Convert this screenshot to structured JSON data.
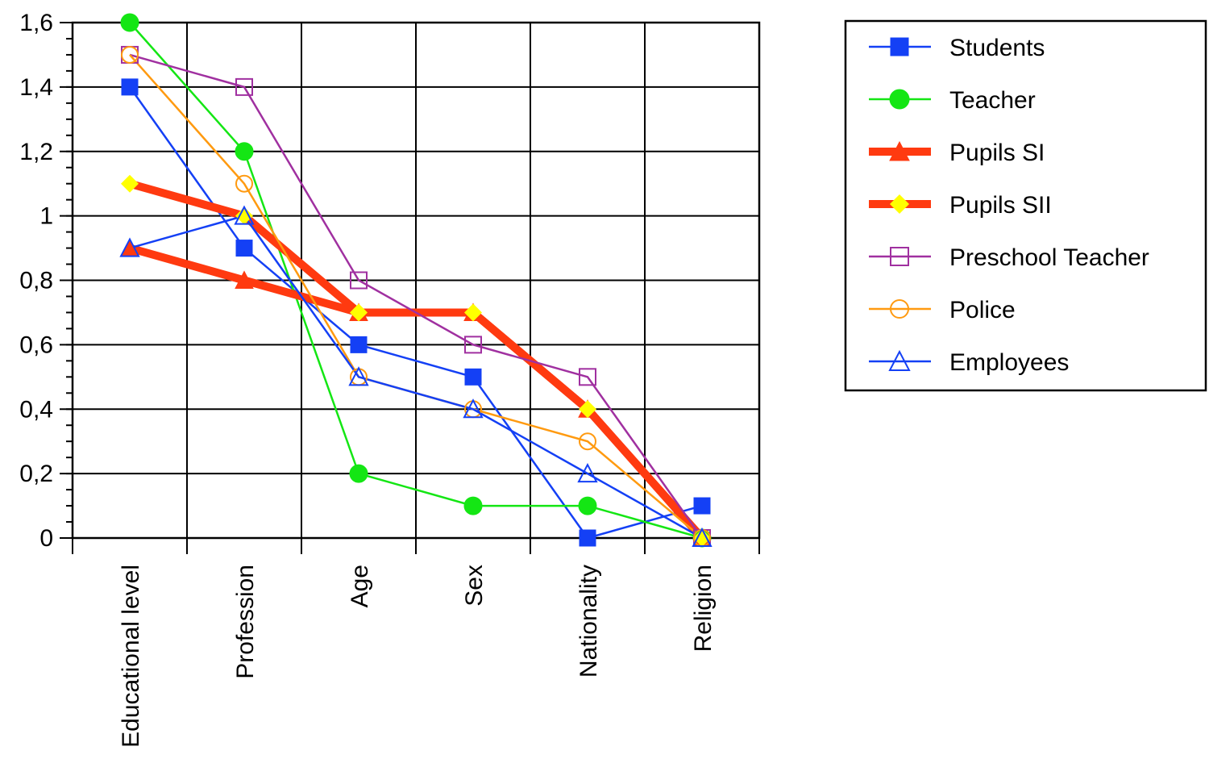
{
  "chart_data": {
    "type": "line",
    "title": "",
    "xlabel": "",
    "ylabel": "",
    "categories": [
      "Educational level",
      "Profession",
      "Age",
      "Sex",
      "Nationality",
      "Religion"
    ],
    "ylim": [
      0,
      1.6
    ],
    "y_ticks": [
      {
        "value": 0,
        "label": "0"
      },
      {
        "value": 0.2,
        "label": "0,2"
      },
      {
        "value": 0.4,
        "label": "0,4"
      },
      {
        "value": 0.6,
        "label": "0,6"
      },
      {
        "value": 0.8,
        "label": "0,8"
      },
      {
        "value": 1,
        "label": "1"
      },
      {
        "value": 1.2,
        "label": "1,2"
      },
      {
        "value": 1.4,
        "label": "1,4"
      },
      {
        "value": 1.6,
        "label": "1,6"
      }
    ],
    "grid": true,
    "legend_position": "right",
    "series": [
      {
        "name": "Students",
        "color": "#1440f5",
        "marker": "square-filled",
        "weight": "thin",
        "values": [
          1.4,
          0.9,
          0.6,
          0.5,
          0,
          0.1
        ]
      },
      {
        "name": "Teacher",
        "color": "#14e614",
        "marker": "circle-filled",
        "weight": "thin",
        "values": [
          1.6,
          1.2,
          0.2,
          0.1,
          0.1,
          0
        ]
      },
      {
        "name": "Pupils SI",
        "color": "#ff3a10",
        "marker": "triangle-filled",
        "weight": "thick",
        "values": [
          0.9,
          0.8,
          0.7,
          0.7,
          0.4,
          0
        ]
      },
      {
        "name": "Pupils SII",
        "color": "#ff3a10",
        "marker": "diamond-filled",
        "marker_color": "#ffff00",
        "weight": "thick",
        "values": [
          1.1,
          1.0,
          0.7,
          0.7,
          0.4,
          0
        ]
      },
      {
        "name": "Preschool Teacher",
        "color": "#a030a0",
        "marker": "square-open",
        "weight": "thin",
        "values": [
          1.5,
          1.4,
          0.8,
          0.6,
          0.5,
          0
        ]
      },
      {
        "name": "Police",
        "color": "#ff9a10",
        "marker": "circle-open",
        "weight": "thin",
        "values": [
          1.5,
          1.1,
          0.5,
          0.4,
          0.3,
          0
        ]
      },
      {
        "name": "Employees",
        "color": "#1440f5",
        "marker": "triangle-open",
        "weight": "thin",
        "values": [
          0.9,
          1.0,
          0.5,
          0.4,
          0.2,
          0
        ]
      }
    ]
  }
}
